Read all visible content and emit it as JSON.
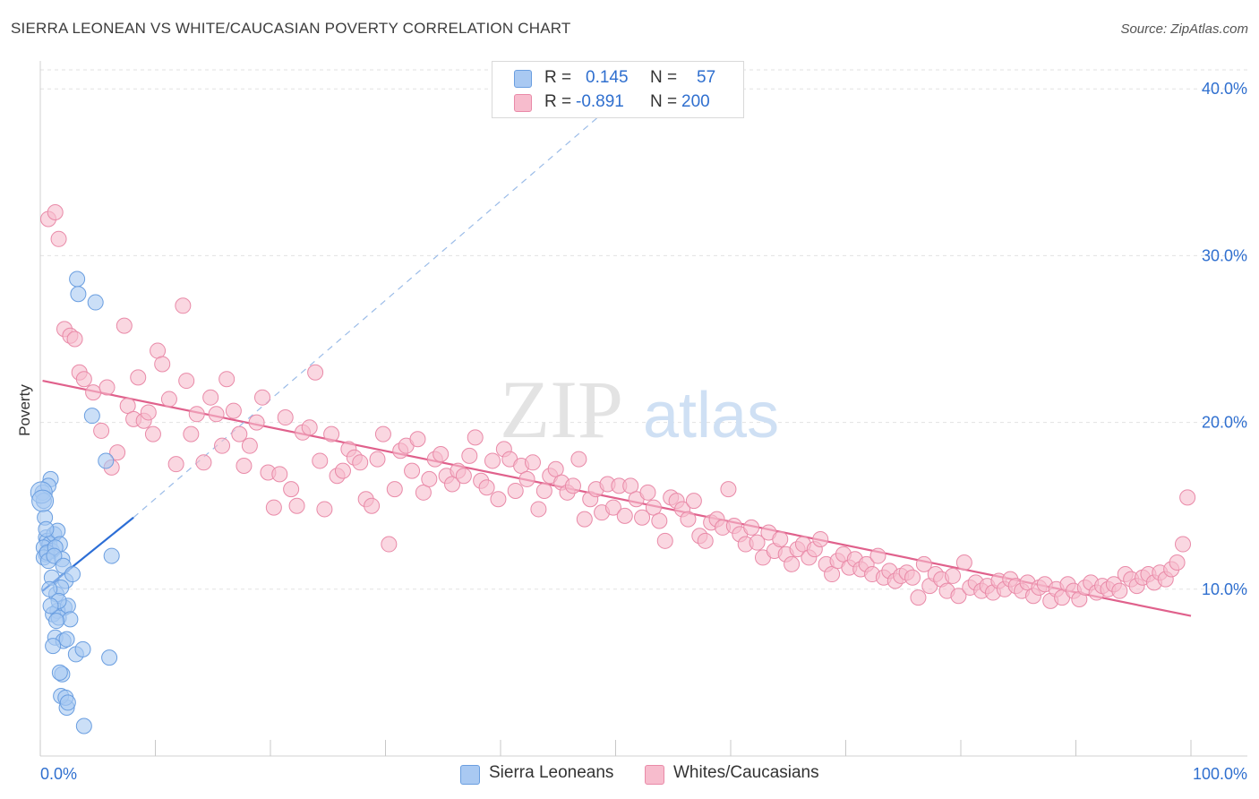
{
  "title": "SIERRA LEONEAN VS WHITE/CAUCASIAN POVERTY CORRELATION CHART",
  "source": "Source: ZipAtlas.com",
  "watermark": {
    "zip": "ZIP",
    "atlas": "atlas"
  },
  "legend": {
    "r_label": "R =",
    "n_label": "N =",
    "rows": [
      {
        "r": "0.145",
        "n": "57",
        "color": "#a9c9f2",
        "border": "#6a9ee0"
      },
      {
        "r": "-0.891",
        "n": "200",
        "color": "#f7bccd",
        "border": "#e98aa8"
      }
    ]
  },
  "bottom_legend": [
    {
      "label": "Sierra Leoneans",
      "color": "#a9c9f2",
      "border": "#6a9ee0"
    },
    {
      "label": "Whites/Caucasians",
      "color": "#f7bccd",
      "border": "#e98aa8"
    }
  ],
  "chart_data": {
    "type": "scatter",
    "title": "SIERRA LEONEAN VS WHITE/CAUCASIAN POVERTY CORRELATION CHART",
    "xlabel": "",
    "ylabel": "Poverty",
    "xlim": [
      0,
      100
    ],
    "ylim": [
      0,
      42
    ],
    "x_tick_labels": [
      "0.0%",
      "100.0%"
    ],
    "y_ticks": [
      10,
      20,
      30,
      40
    ],
    "y_tick_labels": [
      "10.0%",
      "20.0%",
      "30.0%",
      "40.0%"
    ],
    "grid": true,
    "series": [
      {
        "name": "Sierra Leoneans",
        "color": "#6a9ee0",
        "fill": "#a9c9f2",
        "r": 0.145,
        "n": 57,
        "trend": {
          "x": [
            0.2,
            8.1
          ],
          "y": [
            9.9,
            14.3
          ],
          "dashed_to": [
            53,
            41
          ]
        },
        "points": [
          [
            0.2,
            15.8
          ],
          [
            0.3,
            15.3
          ],
          [
            0.4,
            14.3
          ],
          [
            0.5,
            13.1
          ],
          [
            0.6,
            12.9
          ],
          [
            0.8,
            12.7
          ],
          [
            0.3,
            12.5
          ],
          [
            1.0,
            12.3
          ],
          [
            0.5,
            12.1
          ],
          [
            0.3,
            11.9
          ],
          [
            0.6,
            12.2
          ],
          [
            1.2,
            13.3
          ],
          [
            1.5,
            13.5
          ],
          [
            1.7,
            12.7
          ],
          [
            0.9,
            16.6
          ],
          [
            1.3,
            12.5
          ],
          [
            0.7,
            11.7
          ],
          [
            1.9,
            11.8
          ],
          [
            1.0,
            10.7
          ],
          [
            2.2,
            10.5
          ],
          [
            1.4,
            9.7
          ],
          [
            1.8,
            10.1
          ],
          [
            2.1,
            8.9
          ],
          [
            1.5,
            8.7
          ],
          [
            2.4,
            9.0
          ],
          [
            1.1,
            8.5
          ],
          [
            1.6,
            8.3
          ],
          [
            2.6,
            8.2
          ],
          [
            1.3,
            7.1
          ],
          [
            2.0,
            6.9
          ],
          [
            1.1,
            6.6
          ],
          [
            3.1,
            6.1
          ],
          [
            3.7,
            6.4
          ],
          [
            2.3,
            7.0
          ],
          [
            1.9,
            4.9
          ],
          [
            2.3,
            2.9
          ],
          [
            1.8,
            3.6
          ],
          [
            2.2,
            3.5
          ],
          [
            2.4,
            3.2
          ],
          [
            3.8,
            1.8
          ],
          [
            3.2,
            28.6
          ],
          [
            3.3,
            27.7
          ],
          [
            4.8,
            27.2
          ],
          [
            4.5,
            20.4
          ],
          [
            5.7,
            17.7
          ],
          [
            6.2,
            12.0
          ],
          [
            6.0,
            5.9
          ],
          [
            0.5,
            13.6
          ],
          [
            0.8,
            10.0
          ],
          [
            1.2,
            12.0
          ],
          [
            1.6,
            9.3
          ],
          [
            0.9,
            9.0
          ],
          [
            1.4,
            8.1
          ],
          [
            2.0,
            11.4
          ],
          [
            1.7,
            5.0
          ],
          [
            0.7,
            16.2
          ],
          [
            2.8,
            10.9
          ]
        ]
      },
      {
        "name": "Whites/Caucasians",
        "color": "#e98aa8",
        "fill": "#f7bccd",
        "r": -0.891,
        "n": 200,
        "trend": {
          "x": [
            0.2,
            100
          ],
          "y": [
            22.5,
            8.4
          ]
        },
        "points": [
          [
            0.7,
            32.2
          ],
          [
            1.3,
            32.6
          ],
          [
            1.6,
            31.0
          ],
          [
            2.1,
            25.6
          ],
          [
            2.6,
            25.2
          ],
          [
            3.0,
            25.0
          ],
          [
            3.4,
            23.0
          ],
          [
            3.8,
            22.6
          ],
          [
            4.6,
            21.8
          ],
          [
            5.3,
            19.5
          ],
          [
            5.8,
            22.1
          ],
          [
            6.2,
            17.3
          ],
          [
            6.7,
            18.2
          ],
          [
            7.3,
            25.8
          ],
          [
            7.6,
            21.0
          ],
          [
            8.1,
            20.2
          ],
          [
            8.5,
            22.7
          ],
          [
            9.0,
            20.1
          ],
          [
            9.4,
            20.6
          ],
          [
            9.8,
            19.3
          ],
          [
            10.2,
            24.3
          ],
          [
            10.6,
            23.5
          ],
          [
            11.2,
            21.4
          ],
          [
            11.8,
            17.5
          ],
          [
            12.4,
            27.0
          ],
          [
            12.7,
            22.5
          ],
          [
            13.1,
            19.3
          ],
          [
            13.6,
            20.5
          ],
          [
            14.2,
            17.6
          ],
          [
            14.8,
            21.5
          ],
          [
            15.3,
            20.5
          ],
          [
            15.8,
            18.6
          ],
          [
            16.2,
            22.6
          ],
          [
            16.8,
            20.7
          ],
          [
            17.3,
            19.3
          ],
          [
            17.7,
            17.4
          ],
          [
            18.2,
            18.6
          ],
          [
            18.8,
            20.0
          ],
          [
            19.3,
            21.5
          ],
          [
            19.8,
            17.0
          ],
          [
            20.3,
            14.9
          ],
          [
            20.8,
            16.9
          ],
          [
            21.3,
            20.3
          ],
          [
            21.8,
            16.0
          ],
          [
            22.3,
            15.0
          ],
          [
            22.8,
            19.4
          ],
          [
            23.4,
            19.7
          ],
          [
            23.9,
            23.0
          ],
          [
            24.3,
            17.7
          ],
          [
            24.7,
            14.8
          ],
          [
            25.3,
            19.3
          ],
          [
            25.8,
            16.8
          ],
          [
            26.3,
            17.1
          ],
          [
            26.8,
            18.4
          ],
          [
            27.3,
            17.9
          ],
          [
            27.8,
            17.6
          ],
          [
            28.3,
            15.4
          ],
          [
            28.8,
            15.0
          ],
          [
            29.3,
            17.8
          ],
          [
            29.8,
            19.3
          ],
          [
            30.3,
            12.7
          ],
          [
            30.8,
            16.0
          ],
          [
            31.3,
            18.3
          ],
          [
            31.8,
            18.6
          ],
          [
            32.3,
            17.1
          ],
          [
            32.8,
            19.0
          ],
          [
            33.3,
            15.8
          ],
          [
            33.8,
            16.6
          ],
          [
            34.3,
            17.8
          ],
          [
            34.8,
            18.1
          ],
          [
            35.3,
            16.8
          ],
          [
            35.8,
            16.3
          ],
          [
            36.3,
            17.1
          ],
          [
            36.8,
            16.8
          ],
          [
            37.3,
            18.0
          ],
          [
            37.8,
            19.1
          ],
          [
            38.3,
            16.5
          ],
          [
            38.8,
            16.1
          ],
          [
            39.3,
            17.7
          ],
          [
            39.8,
            15.4
          ],
          [
            40.3,
            18.4
          ],
          [
            40.8,
            17.8
          ],
          [
            41.3,
            15.9
          ],
          [
            41.8,
            17.4
          ],
          [
            42.3,
            16.6
          ],
          [
            42.8,
            17.6
          ],
          [
            43.3,
            14.8
          ],
          [
            43.8,
            15.9
          ],
          [
            44.3,
            16.8
          ],
          [
            44.8,
            17.2
          ],
          [
            45.3,
            16.4
          ],
          [
            45.8,
            15.8
          ],
          [
            46.3,
            16.2
          ],
          [
            46.8,
            17.8
          ],
          [
            47.3,
            14.2
          ],
          [
            47.8,
            15.4
          ],
          [
            48.3,
            16.0
          ],
          [
            48.8,
            14.6
          ],
          [
            49.3,
            16.3
          ],
          [
            49.8,
            14.9
          ],
          [
            50.3,
            16.2
          ],
          [
            50.8,
            14.4
          ],
          [
            51.3,
            16.2
          ],
          [
            51.8,
            15.4
          ],
          [
            52.3,
            14.3
          ],
          [
            52.8,
            15.8
          ],
          [
            53.3,
            14.9
          ],
          [
            53.8,
            14.1
          ],
          [
            54.3,
            12.9
          ],
          [
            54.8,
            15.5
          ],
          [
            55.3,
            15.3
          ],
          [
            55.8,
            14.8
          ],
          [
            56.3,
            14.2
          ],
          [
            56.8,
            15.3
          ],
          [
            57.3,
            13.2
          ],
          [
            57.8,
            12.9
          ],
          [
            58.3,
            14.0
          ],
          [
            58.8,
            14.2
          ],
          [
            59.3,
            13.7
          ],
          [
            59.8,
            16.0
          ],
          [
            60.3,
            13.8
          ],
          [
            60.8,
            13.3
          ],
          [
            61.3,
            12.7
          ],
          [
            61.8,
            13.7
          ],
          [
            62.3,
            12.8
          ],
          [
            62.8,
            11.9
          ],
          [
            63.3,
            13.4
          ],
          [
            63.8,
            12.3
          ],
          [
            64.3,
            13.0
          ],
          [
            64.8,
            12.1
          ],
          [
            65.3,
            11.5
          ],
          [
            65.8,
            12.4
          ],
          [
            66.3,
            12.7
          ],
          [
            66.8,
            11.9
          ],
          [
            67.3,
            12.4
          ],
          [
            67.8,
            13.0
          ],
          [
            68.3,
            11.5
          ],
          [
            68.8,
            10.9
          ],
          [
            69.3,
            11.7
          ],
          [
            69.8,
            12.1
          ],
          [
            70.3,
            11.3
          ],
          [
            70.8,
            11.8
          ],
          [
            71.3,
            11.2
          ],
          [
            71.8,
            11.5
          ],
          [
            72.3,
            10.9
          ],
          [
            72.8,
            12.0
          ],
          [
            73.3,
            10.7
          ],
          [
            73.8,
            11.1
          ],
          [
            74.3,
            10.5
          ],
          [
            74.8,
            10.8
          ],
          [
            75.3,
            11.0
          ],
          [
            75.8,
            10.7
          ],
          [
            76.3,
            9.5
          ],
          [
            76.8,
            11.5
          ],
          [
            77.3,
            10.2
          ],
          [
            77.8,
            10.9
          ],
          [
            78.3,
            10.6
          ],
          [
            78.8,
            9.9
          ],
          [
            79.3,
            10.8
          ],
          [
            79.8,
            9.6
          ],
          [
            80.3,
            11.6
          ],
          [
            80.8,
            10.1
          ],
          [
            81.3,
            10.4
          ],
          [
            81.8,
            9.9
          ],
          [
            82.3,
            10.2
          ],
          [
            82.8,
            9.8
          ],
          [
            83.3,
            10.5
          ],
          [
            83.8,
            10.0
          ],
          [
            84.3,
            10.6
          ],
          [
            84.8,
            10.2
          ],
          [
            85.3,
            9.9
          ],
          [
            85.8,
            10.4
          ],
          [
            86.3,
            9.6
          ],
          [
            86.8,
            10.1
          ],
          [
            87.3,
            10.3
          ],
          [
            87.8,
            9.3
          ],
          [
            88.3,
            10.0
          ],
          [
            88.8,
            9.5
          ],
          [
            89.3,
            10.3
          ],
          [
            89.8,
            9.9
          ],
          [
            90.3,
            9.4
          ],
          [
            90.8,
            10.1
          ],
          [
            91.3,
            10.4
          ],
          [
            91.8,
            9.8
          ],
          [
            92.3,
            10.2
          ],
          [
            92.8,
            10.0
          ],
          [
            93.3,
            10.3
          ],
          [
            93.8,
            9.9
          ],
          [
            94.3,
            10.9
          ],
          [
            94.8,
            10.6
          ],
          [
            95.3,
            10.2
          ],
          [
            95.8,
            10.7
          ],
          [
            96.3,
            10.9
          ],
          [
            96.8,
            10.4
          ],
          [
            97.3,
            11.0
          ],
          [
            97.8,
            10.6
          ],
          [
            98.3,
            11.2
          ],
          [
            98.8,
            11.6
          ],
          [
            99.3,
            12.7
          ],
          [
            99.7,
            15.5
          ]
        ]
      }
    ]
  }
}
